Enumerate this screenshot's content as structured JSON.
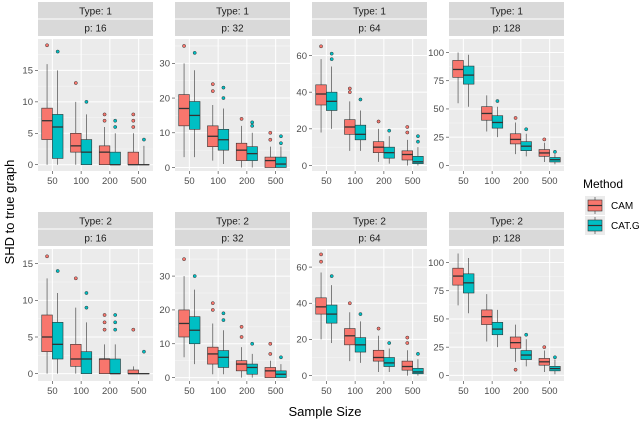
{
  "chart_data": {
    "type": "boxplot",
    "xlabel": "Sample Size",
    "ylabel": "SHD to true graph",
    "categories": [
      "50",
      "100",
      "200",
      "500"
    ],
    "legend": {
      "title": "Method",
      "placement": "right",
      "entries": [
        {
          "name": "CAM",
          "color": "#F8766D"
        },
        {
          "name": "CAT.G",
          "color": "#00BFC4"
        }
      ]
    },
    "panels": [
      {
        "strip_type": "Type: 1",
        "strip_p": "p: 16",
        "ylim": [
          -1,
          20
        ],
        "yticks": [
          0,
          5,
          10,
          15
        ],
        "boxes": {
          "CAM": [
            {
              "lo": 0,
              "q1": 4,
              "med": 7,
              "q3": 9,
              "hi": 16,
              "out": [
                19
              ]
            },
            {
              "lo": 0,
              "q1": 2,
              "med": 3,
              "q3": 5,
              "hi": 10,
              "out": [
                13
              ]
            },
            {
              "lo": 0,
              "q1": 0,
              "med": 2,
              "q3": 3,
              "hi": 6,
              "out": [
                7,
                8
              ]
            },
            {
              "lo": 0,
              "q1": 0,
              "med": 0,
              "q3": 2,
              "hi": 5,
              "out": [
                6,
                7,
                8
              ]
            }
          ],
          "CAT.G": [
            {
              "lo": 0,
              "q1": 1,
              "med": 6,
              "q3": 8,
              "hi": 15,
              "out": [
                18
              ]
            },
            {
              "lo": 0,
              "q1": 0,
              "med": 2,
              "q3": 4,
              "hi": 8,
              "out": [
                10
              ]
            },
            {
              "lo": 0,
              "q1": 0,
              "med": 0,
              "q3": 2,
              "hi": 5,
              "out": [
                6,
                7
              ]
            },
            {
              "lo": 0,
              "q1": 0,
              "med": 0,
              "q3": 0,
              "hi": 3,
              "out": [
                4
              ]
            }
          ]
        }
      },
      {
        "strip_type": "Type: 1",
        "strip_p": "p: 32",
        "ylim": [
          -1,
          37
        ],
        "yticks": [
          0,
          10,
          20,
          30
        ],
        "boxes": {
          "CAM": [
            {
              "lo": 3,
              "q1": 12,
              "med": 17,
              "q3": 21,
              "hi": 30,
              "out": [
                35
              ]
            },
            {
              "lo": 2,
              "q1": 6,
              "med": 9,
              "q3": 12,
              "hi": 18,
              "out": [
                22,
                24
              ]
            },
            {
              "lo": 0,
              "q1": 2,
              "med": 5,
              "q3": 7,
              "hi": 12,
              "out": [
                14
              ]
            },
            {
              "lo": 0,
              "q1": 0,
              "med": 2,
              "q3": 3,
              "hi": 6,
              "out": [
                8,
                10
              ]
            }
          ],
          "CAT.G": [
            {
              "lo": 3,
              "q1": 11,
              "med": 15,
              "q3": 19,
              "hi": 28,
              "out": [
                33
              ]
            },
            {
              "lo": 1,
              "q1": 5,
              "med": 8,
              "q3": 11,
              "hi": 17,
              "out": [
                20,
                23
              ]
            },
            {
              "lo": 0,
              "q1": 2,
              "med": 4,
              "q3": 6,
              "hi": 10,
              "out": [
                12,
                13
              ]
            },
            {
              "lo": 0,
              "q1": 0,
              "med": 1,
              "q3": 3,
              "hi": 6,
              "out": [
                7,
                9
              ]
            }
          ]
        }
      },
      {
        "strip_type": "Type: 1",
        "strip_p": "p: 64",
        "ylim": [
          -3,
          69
        ],
        "yticks": [
          0,
          20,
          40,
          60
        ],
        "boxes": {
          "CAM": [
            {
              "lo": 18,
              "q1": 33,
              "med": 39,
              "q3": 44,
              "hi": 58,
              "out": [
                65
              ]
            },
            {
              "lo": 8,
              "q1": 17,
              "med": 21,
              "q3": 25,
              "hi": 35,
              "out": [
                40,
                42
              ]
            },
            {
              "lo": 2,
              "q1": 7,
              "med": 10,
              "q3": 13,
              "hi": 20,
              "out": [
                24
              ]
            },
            {
              "lo": 0,
              "q1": 3,
              "med": 6,
              "q3": 8,
              "hi": 14,
              "out": [
                18,
                21
              ]
            }
          ],
          "CAT.G": [
            {
              "lo": 20,
              "q1": 30,
              "med": 35,
              "q3": 40,
              "hi": 54,
              "out": [
                58,
                61
              ]
            },
            {
              "lo": 8,
              "q1": 14,
              "med": 17,
              "q3": 22,
              "hi": 30,
              "out": [
                36
              ]
            },
            {
              "lo": 1,
              "q1": 4,
              "med": 7,
              "q3": 10,
              "hi": 16,
              "out": [
                19
              ]
            },
            {
              "lo": 0,
              "q1": 1,
              "med": 2,
              "q3": 5,
              "hi": 10,
              "out": [
                13,
                16
              ]
            }
          ]
        }
      },
      {
        "strip_type": "Type: 1",
        "strip_p": "p: 128",
        "ylim": [
          -5,
          112
        ],
        "yticks": [
          0,
          25,
          50,
          75,
          100
        ],
        "boxes": {
          "CAM": [
            {
              "lo": 55,
              "q1": 78,
              "med": 85,
              "q3": 93,
              "hi": 100,
              "out": []
            },
            {
              "lo": 30,
              "q1": 40,
              "med": 46,
              "q3": 52,
              "hi": 62,
              "out": []
            },
            {
              "lo": 10,
              "q1": 19,
              "med": 23,
              "q3": 28,
              "hi": 38,
              "out": [
                42
              ]
            },
            {
              "lo": 3,
              "q1": 8,
              "med": 11,
              "q3": 14,
              "hi": 20,
              "out": [
                23
              ]
            }
          ],
          "CAT.G": [
            {
              "lo": 52,
              "q1": 72,
              "med": 80,
              "q3": 88,
              "hi": 98,
              "out": []
            },
            {
              "lo": 25,
              "q1": 33,
              "med": 38,
              "q3": 44,
              "hi": 52,
              "out": [
                57
              ]
            },
            {
              "lo": 8,
              "q1": 13,
              "med": 17,
              "q3": 21,
              "hi": 28,
              "out": [
                32
              ]
            },
            {
              "lo": 1,
              "q1": 3,
              "med": 5,
              "q3": 7,
              "hi": 10,
              "out": [
                12
              ]
            }
          ]
        }
      },
      {
        "strip_type": "Type: 2",
        "strip_p": "p: 16",
        "ylim": [
          -1,
          17
        ],
        "yticks": [
          0,
          5,
          10,
          15
        ],
        "boxes": {
          "CAM": [
            {
              "lo": 0,
              "q1": 3,
              "med": 5,
              "q3": 8,
              "hi": 13,
              "out": [
                16
              ]
            },
            {
              "lo": 0,
              "q1": 1,
              "med": 2,
              "q3": 4,
              "hi": 9,
              "out": [
                13
              ]
            },
            {
              "lo": 0,
              "q1": 0,
              "med": 2,
              "q3": 2,
              "hi": 4,
              "out": [
                6,
                7,
                8
              ]
            },
            {
              "lo": 0,
              "q1": 0,
              "med": 0,
              "q3": 0.5,
              "hi": 1,
              "out": [
                6
              ]
            }
          ],
          "CAT.G": [
            {
              "lo": 0,
              "q1": 2,
              "med": 4,
              "q3": 7,
              "hi": 11,
              "out": [
                14
              ]
            },
            {
              "lo": 0,
              "q1": 0,
              "med": 2,
              "q3": 3,
              "hi": 7,
              "out": [
                9,
                11
              ]
            },
            {
              "lo": 0,
              "q1": 0,
              "med": 0,
              "q3": 2,
              "hi": 4,
              "out": [
                6,
                7,
                8
              ]
            },
            {
              "lo": 0,
              "q1": 0,
              "med": 0,
              "q3": 0,
              "hi": 0,
              "out": [
                3
              ]
            }
          ]
        }
      },
      {
        "strip_type": "Type: 2",
        "strip_p": "p: 32",
        "ylim": [
          -1,
          38
        ],
        "yticks": [
          0,
          10,
          20,
          30
        ],
        "boxes": {
          "CAM": [
            {
              "lo": 6,
              "q1": 12,
              "med": 16,
              "q3": 20,
              "hi": 30,
              "out": [
                35
              ]
            },
            {
              "lo": 1,
              "q1": 4,
              "med": 7,
              "q3": 9,
              "hi": 16,
              "out": [
                20,
                22
              ]
            },
            {
              "lo": 0,
              "q1": 2,
              "med": 4,
              "q3": 5,
              "hi": 9,
              "out": [
                12,
                15
              ]
            },
            {
              "lo": 0,
              "q1": 0,
              "med": 2,
              "q3": 3,
              "hi": 5,
              "out": [
                7,
                10
              ]
            }
          ],
          "CAT.G": [
            {
              "lo": 4,
              "q1": 10,
              "med": 14,
              "q3": 18,
              "hi": 26,
              "out": [
                30
              ]
            },
            {
              "lo": 1,
              "q1": 3,
              "med": 6,
              "q3": 8,
              "hi": 14,
              "out": [
                17,
                19
              ]
            },
            {
              "lo": 0,
              "q1": 1,
              "med": 3,
              "q3": 4,
              "hi": 7,
              "out": [
                10
              ]
            },
            {
              "lo": 0,
              "q1": 0,
              "med": 1,
              "q3": 2,
              "hi": 4,
              "out": [
                6
              ]
            }
          ]
        }
      },
      {
        "strip_type": "Type: 2",
        "strip_p": "p: 64",
        "ylim": [
          -3,
          70
        ],
        "yticks": [
          0,
          20,
          40,
          60
        ],
        "boxes": {
          "CAM": [
            {
              "lo": 20,
              "q1": 34,
              "med": 38,
              "q3": 43,
              "hi": 57,
              "out": [
                63,
                67
              ]
            },
            {
              "lo": 8,
              "q1": 17,
              "med": 22,
              "q3": 26,
              "hi": 35,
              "out": [
                40
              ]
            },
            {
              "lo": 2,
              "q1": 8,
              "med": 10,
              "q3": 14,
              "hi": 22,
              "out": [
                26
              ]
            },
            {
              "lo": 0,
              "q1": 3,
              "med": 5,
              "q3": 8,
              "hi": 14,
              "out": [
                18,
                21
              ]
            }
          ],
          "CAT.G": [
            {
              "lo": 18,
              "q1": 29,
              "med": 34,
              "q3": 39,
              "hi": 50,
              "out": [
                55
              ]
            },
            {
              "lo": 7,
              "q1": 13,
              "med": 17,
              "q3": 21,
              "hi": 30,
              "out": [
                34
              ]
            },
            {
              "lo": 2,
              "q1": 5,
              "med": 7,
              "q3": 10,
              "hi": 15,
              "out": [
                18
              ]
            },
            {
              "lo": 0,
              "q1": 1,
              "med": 2,
              "q3": 4,
              "hi": 9,
              "out": [
                12
              ]
            }
          ]
        }
      },
      {
        "strip_type": "Type: 2",
        "strip_p": "p: 128",
        "ylim": [
          -5,
          112
        ],
        "yticks": [
          0,
          25,
          50,
          75,
          100
        ],
        "boxes": {
          "CAM": [
            {
              "lo": 62,
              "q1": 80,
              "med": 88,
              "q3": 95,
              "hi": 108,
              "out": []
            },
            {
              "lo": 30,
              "q1": 45,
              "med": 52,
              "q3": 58,
              "hi": 72,
              "out": []
            },
            {
              "lo": 12,
              "q1": 24,
              "med": 29,
              "q3": 34,
              "hi": 45,
              "out": [
                5
              ]
            },
            {
              "lo": 3,
              "q1": 9,
              "med": 12,
              "q3": 15,
              "hi": 22,
              "out": [
                25
              ]
            }
          ],
          "CAT.G": [
            {
              "lo": 55,
              "q1": 73,
              "med": 82,
              "q3": 90,
              "hi": 104,
              "out": []
            },
            {
              "lo": 25,
              "q1": 36,
              "med": 41,
              "q3": 47,
              "hi": 58,
              "out": []
            },
            {
              "lo": 8,
              "q1": 14,
              "med": 18,
              "q3": 22,
              "hi": 32,
              "out": [
                36
              ]
            },
            {
              "lo": 1,
              "q1": 4,
              "med": 6,
              "q3": 8,
              "hi": 14,
              "out": [
                16
              ]
            }
          ]
        }
      }
    ]
  }
}
